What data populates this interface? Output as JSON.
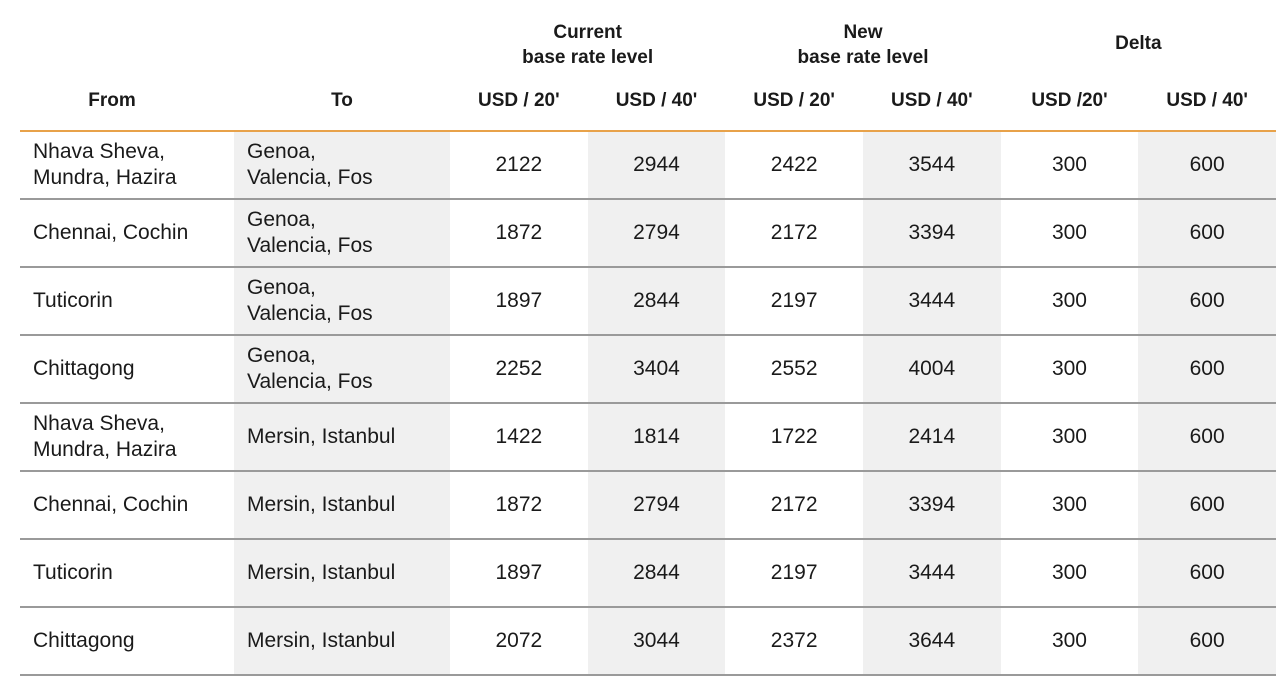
{
  "header": {
    "groups": [
      {
        "line1": "Current",
        "line2": "base rate level"
      },
      {
        "line1": "New",
        "line2": "base rate level"
      },
      {
        "line1": "Delta",
        "line2": ""
      }
    ],
    "from": "From",
    "to": "To",
    "units": [
      "USD / 20'",
      "USD / 40'",
      "USD / 20'",
      "USD / 40'",
      "USD /20'",
      "USD / 40'"
    ]
  },
  "rows": [
    {
      "from": [
        "Nhava Sheva,",
        "Mundra, Hazira"
      ],
      "to": [
        "Genoa,",
        "Valencia, Fos"
      ],
      "cur20": "2122",
      "cur40": "2944",
      "new20": "2422",
      "new40": "3544",
      "d20": "300",
      "d40": "600"
    },
    {
      "from": [
        "Chennai, Cochin"
      ],
      "to": [
        "Genoa,",
        "Valencia, Fos"
      ],
      "cur20": "1872",
      "cur40": "2794",
      "new20": "2172",
      "new40": "3394",
      "d20": "300",
      "d40": "600"
    },
    {
      "from": [
        "Tuticorin"
      ],
      "to": [
        "Genoa,",
        "Valencia, Fos"
      ],
      "cur20": "1897",
      "cur40": "2844",
      "new20": "2197",
      "new40": "3444",
      "d20": "300",
      "d40": "600"
    },
    {
      "from": [
        "Chittagong"
      ],
      "to": [
        "Genoa,",
        "Valencia, Fos"
      ],
      "cur20": "2252",
      "cur40": "3404",
      "new20": "2552",
      "new40": "4004",
      "d20": "300",
      "d40": "600"
    },
    {
      "from": [
        "Nhava Sheva,",
        "Mundra, Hazira"
      ],
      "to": [
        "Mersin, Istanbul"
      ],
      "cur20": "1422",
      "cur40": "1814",
      "new20": "1722",
      "new40": "2414",
      "d20": "300",
      "d40": "600"
    },
    {
      "from": [
        "Chennai, Cochin"
      ],
      "to": [
        "Mersin, Istanbul"
      ],
      "cur20": "1872",
      "cur40": "2794",
      "new20": "2172",
      "new40": "3394",
      "d20": "300",
      "d40": "600"
    },
    {
      "from": [
        "Tuticorin"
      ],
      "to": [
        "Mersin, Istanbul"
      ],
      "cur20": "1897",
      "cur40": "2844",
      "new20": "2197",
      "new40": "3444",
      "d20": "300",
      "d40": "600"
    },
    {
      "from": [
        "Chittagong"
      ],
      "to": [
        "Mersin, Istanbul"
      ],
      "cur20": "2072",
      "cur40": "3044",
      "new20": "2372",
      "new40": "3644",
      "d20": "300",
      "d40": "600"
    }
  ]
}
